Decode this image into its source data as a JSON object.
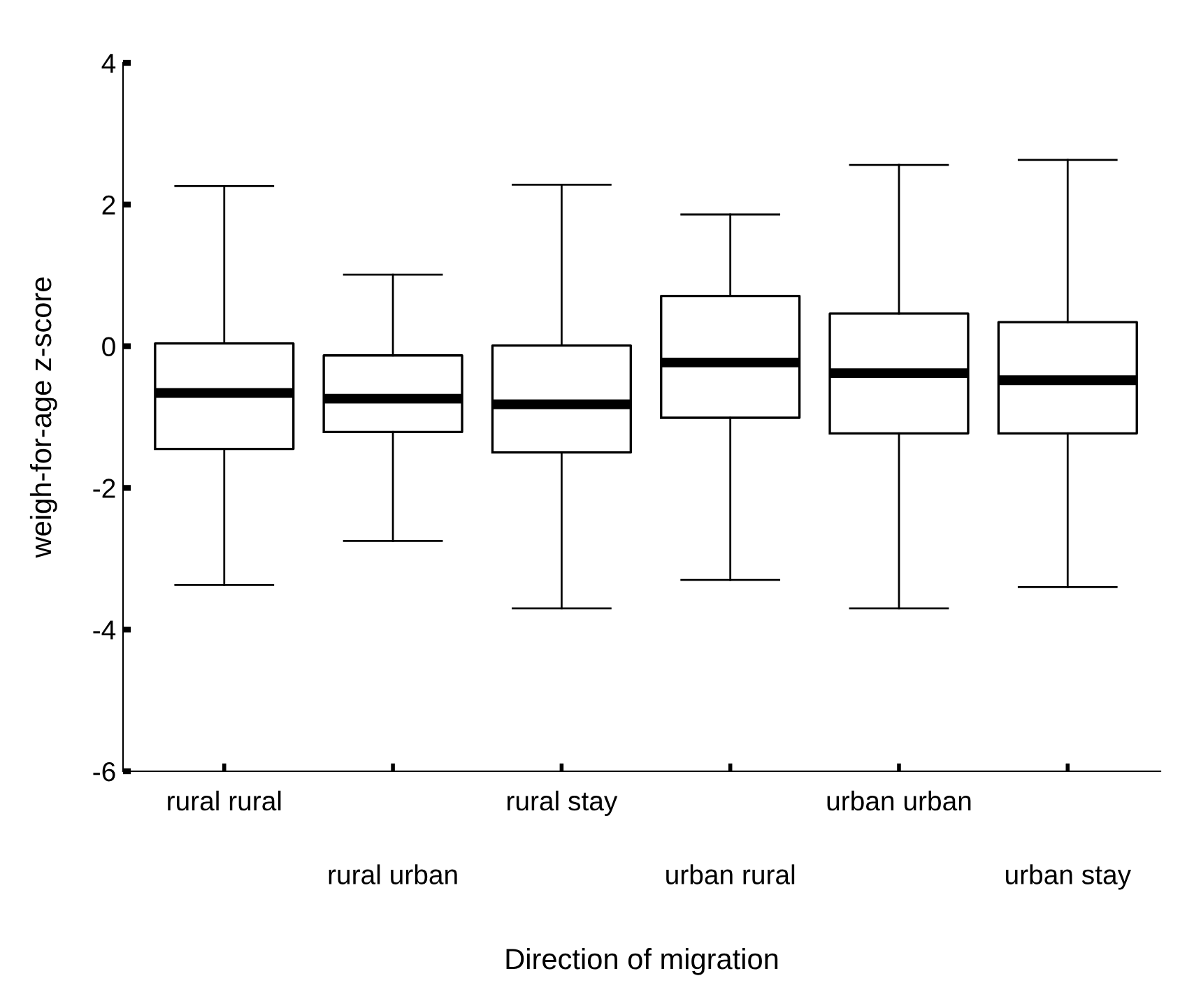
{
  "chart_data": {
    "type": "box",
    "xlabel": "Direction of migration",
    "ylabel": "weigh-for-age z-score",
    "categories": [
      "rural rural",
      "rural urban",
      "rural stay",
      "urban rural",
      "urban urban",
      "urban stay"
    ],
    "boxes": [
      {
        "low": -3.37,
        "q1": -1.45,
        "median": -0.66,
        "q3": 0.04,
        "high": 2.26
      },
      {
        "low": -2.75,
        "q1": -1.21,
        "median": -0.74,
        "q3": -0.13,
        "high": 1.01
      },
      {
        "low": -3.7,
        "q1": -1.5,
        "median": -0.82,
        "q3": 0.01,
        "high": 2.28
      },
      {
        "low": -3.3,
        "q1": -1.01,
        "median": -0.23,
        "q3": 0.71,
        "high": 1.86
      },
      {
        "low": -3.7,
        "q1": -1.23,
        "median": -0.38,
        "q3": 0.46,
        "high": 2.56
      },
      {
        "low": -3.4,
        "q1": -1.23,
        "median": -0.48,
        "q3": 0.34,
        "high": 2.63
      }
    ],
    "color": "#000000",
    "ylim": [
      -6,
      4
    ],
    "yticks": [
      -6,
      -4,
      -2,
      0,
      2,
      4
    ],
    "grid": false
  }
}
